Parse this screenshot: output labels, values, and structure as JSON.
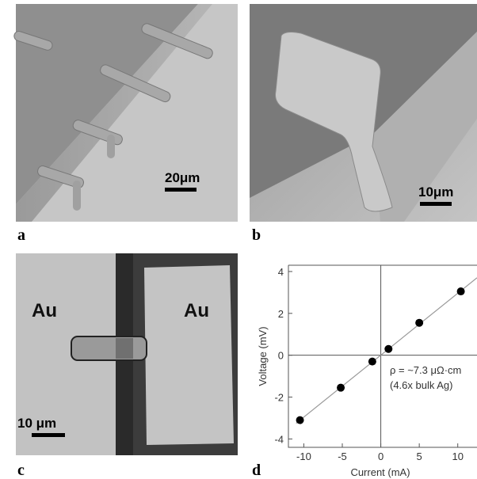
{
  "panels": [
    {
      "label": "a",
      "scale_bar": "20μm"
    },
    {
      "label": "b",
      "scale_bar": "10μm"
    },
    {
      "label": "c",
      "scale_bar": "10 μm",
      "annotations": [
        "Au",
        "Au"
      ]
    }
  ],
  "chart_data": {
    "type": "scatter",
    "panel_label": "d",
    "xlabel": "Current (mA)",
    "ylabel": "Voltage (mV)",
    "x": [
      -10.5,
      -5.2,
      -1.1,
      1.0,
      5.0,
      10.4
    ],
    "series": [
      {
        "color": "#000000",
        "values": [
          -3.1,
          -1.55,
          -0.3,
          0.3,
          1.55,
          3.05
        ]
      }
    ],
    "fit": {
      "color": "#999999",
      "x": [
        -11,
        12.5
      ],
      "values": [
        -3.25,
        3.7
      ]
    },
    "annotations": [
      "ρ = ~7.3 μΩ·cm",
      "(4.6x bulk Ag)"
    ],
    "xlim": [
      -12,
      12.5
    ],
    "xticks": [
      -10,
      -5,
      0,
      5,
      10
    ],
    "ylim": [
      -4.4,
      4.3
    ],
    "yticks": [
      -4,
      -2,
      0,
      2,
      4
    ],
    "zero_lines": true
  }
}
